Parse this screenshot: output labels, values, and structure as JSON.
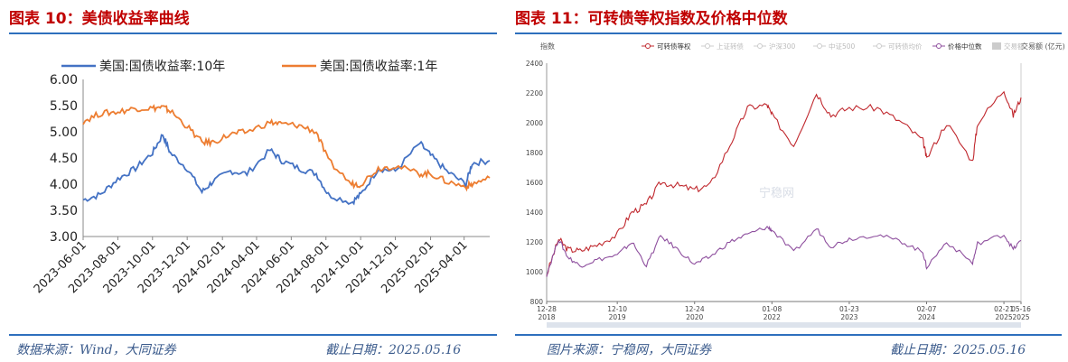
{
  "left": {
    "title": "图表 10：美债收益率曲线",
    "source": "数据来源：Wind，大同证券",
    "date": "截止日期：2025.05.16"
  },
  "right": {
    "title": "图表 11：可转债等权指数及价格中位数",
    "source": "图片来源：宁稳网，大同证券",
    "date": "截止日期：2025.05.16"
  },
  "chart_data": [
    {
      "type": "line",
      "ylim": [
        3.0,
        6.0
      ],
      "yticks": [
        "3.00",
        "3.50",
        "4.00",
        "4.50",
        "5.00",
        "5.50",
        "6.00"
      ],
      "xticks": [
        "2023-06-01",
        "2023-08-01",
        "2023-10-01",
        "2023-12-01",
        "2024-02-01",
        "2024-04-01",
        "2024-06-01",
        "2024-08-01",
        "2024-10-01",
        "2024-12-01",
        "2025-02-01",
        "2025-04-01"
      ],
      "legend": "top",
      "grid": false,
      "x": [
        "2023-06-01",
        "2023-07-01",
        "2023-08-01",
        "2023-09-01",
        "2023-10-01",
        "2023-10-19",
        "2023-11-01",
        "2023-12-01",
        "2023-12-27",
        "2024-01-15",
        "2024-02-15",
        "2024-03-15",
        "2024-04-25",
        "2024-05-15",
        "2024-06-15",
        "2024-07-15",
        "2024-08-05",
        "2024-09-15",
        "2024-10-01",
        "2024-11-01",
        "2024-12-01",
        "2025-01-13",
        "2025-02-01",
        "2025-03-01",
        "2025-04-04",
        "2025-04-15",
        "2025-05-16"
      ],
      "series": [
        {
          "name": "美国:国债收益率:10年",
          "color": "#4472c4",
          "values": [
            3.7,
            3.8,
            4.1,
            4.3,
            4.6,
            4.95,
            4.6,
            4.3,
            3.85,
            4.05,
            4.25,
            4.2,
            4.65,
            4.45,
            4.3,
            4.2,
            3.8,
            3.65,
            3.8,
            4.3,
            4.25,
            4.78,
            4.55,
            4.25,
            4.0,
            4.4,
            4.45
          ]
        },
        {
          "name": "美国:国债收益率:1年",
          "color": "#ed7d31",
          "values": [
            5.2,
            5.35,
            5.38,
            5.45,
            5.45,
            5.47,
            5.4,
            5.1,
            4.8,
            4.8,
            4.95,
            5.0,
            5.18,
            5.15,
            5.12,
            5.0,
            4.45,
            4.0,
            4.0,
            4.3,
            4.35,
            4.2,
            4.2,
            4.05,
            3.95,
            4.0,
            4.12
          ]
        }
      ]
    },
    {
      "type": "line",
      "ylim": [
        800,
        2400
      ],
      "yticks": [
        "800",
        "1000",
        "1200",
        "1400",
        "1600",
        "1800",
        "2000",
        "2200",
        "2400"
      ],
      "ylabel": "指数",
      "y2label": "交易额 (亿元)",
      "watermark": "宁稳网",
      "xticks": [
        [
          "12-28",
          "2018"
        ],
        [
          "12-10",
          "2019"
        ],
        [
          "12-24",
          "2020"
        ],
        [
          "01-08",
          "2022"
        ],
        [
          "01-23",
          "2023"
        ],
        [
          "02-07",
          "2024"
        ],
        [
          "02-21",
          "2025"
        ],
        [
          "05-16",
          "2025"
        ]
      ],
      "legend_items": [
        {
          "label": "可转债等权",
          "color": "#c0282e",
          "active": true
        },
        {
          "label": "上证转债",
          "active": false
        },
        {
          "label": "沪深300",
          "active": false
        },
        {
          "label": "中证500",
          "active": false
        },
        {
          "label": "可转债均价",
          "active": false
        },
        {
          "label": "价格中位数",
          "color": "#8e4f9e",
          "active": true
        },
        {
          "label": "交易额",
          "active": false
        }
      ],
      "x": [
        "2018-12-28",
        "2019-02-25",
        "2019-04-10",
        "2019-06-10",
        "2019-09-01",
        "2019-12-10",
        "2020-02-20",
        "2020-05-01",
        "2020-07-10",
        "2020-10-01",
        "2020-12-24",
        "2021-03-10",
        "2021-06-15",
        "2021-09-10",
        "2021-12-15",
        "2022-01-08",
        "2022-04-25",
        "2022-08-15",
        "2022-10-25",
        "2023-01-23",
        "2023-06-10",
        "2023-10-10",
        "2024-01-20",
        "2024-02-07",
        "2024-05-15",
        "2024-09-20",
        "2024-10-15",
        "2025-02-21",
        "2025-04-08",
        "2025-05-16"
      ],
      "series": [
        {
          "name": "可转债等权",
          "color": "#c0282e",
          "values": [
            980,
            1220,
            1150,
            1140,
            1180,
            1250,
            1400,
            1450,
            1600,
            1580,
            1550,
            1580,
            1850,
            2100,
            2120,
            2050,
            1850,
            2200,
            2050,
            2100,
            2100,
            2000,
            1880,
            1760,
            2000,
            1740,
            2000,
            2220,
            2050,
            2170
          ]
        },
        {
          "name": "价格中位数",
          "color": "#8e4f9e",
          "values": [
            980,
            1220,
            1100,
            1040,
            1080,
            1110,
            1200,
            1040,
            1240,
            1150,
            1050,
            1100,
            1200,
            1250,
            1300,
            1280,
            1130,
            1290,
            1170,
            1220,
            1250,
            1200,
            1130,
            1030,
            1200,
            1060,
            1190,
            1250,
            1150,
            1210
          ]
        }
      ]
    }
  ]
}
